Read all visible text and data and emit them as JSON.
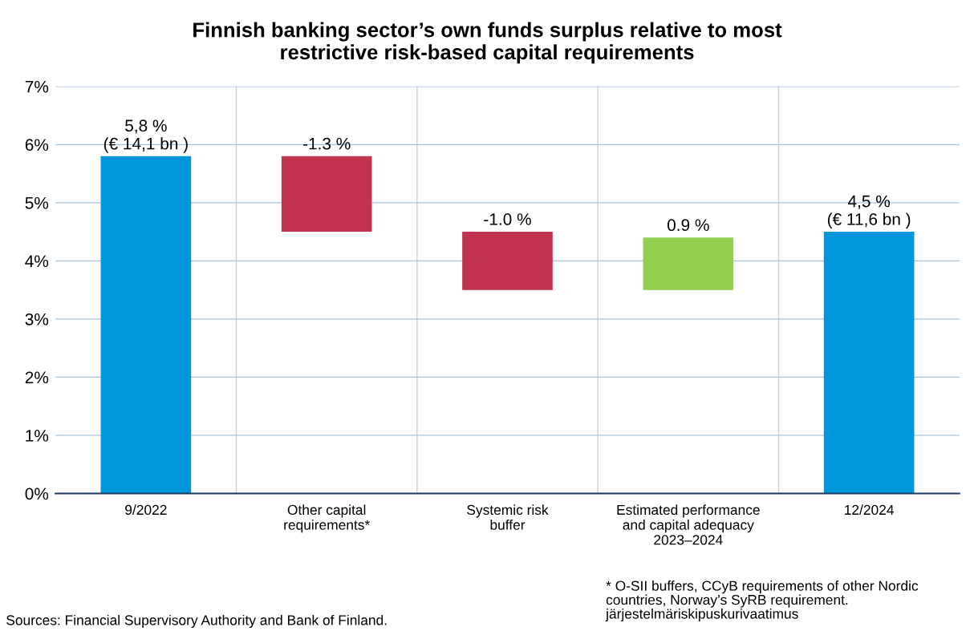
{
  "chart_data": {
    "type": "bar",
    "title": "Finnish banking sector’s own funds surplus relative to most\nrestrictive risk-based capital requirements",
    "categories": [
      "9/2022",
      "Other capital\nrequirements*",
      "Systemic risk\nbuffer",
      "Estimated performance\nand capital adequacy\n2023–2024",
      "12/2024"
    ],
    "values": [
      5.8,
      -1.3,
      -1.0,
      0.9,
      4.5
    ],
    "base": [
      0,
      5.8,
      4.5,
      3.5,
      0
    ],
    "colors": [
      "#0096db",
      "#c23350",
      "#c23350",
      "#92d050",
      "#0096db"
    ],
    "value_labels": [
      "5,8 %\n(€ 14,1 bn )",
      "-1.3 %",
      "-1.0 %",
      "0.9 %",
      "4,5 %\n(€ 11,6 bn )"
    ],
    "ylim": [
      0,
      7
    ],
    "yticks": [
      {
        "value": 0,
        "label": "0%"
      },
      {
        "value": 1,
        "label": "1%"
      },
      {
        "value": 2,
        "label": "2%"
      },
      {
        "value": 3,
        "label": "3%"
      },
      {
        "value": 4,
        "label": "4%"
      },
      {
        "value": 5,
        "label": "5%"
      },
      {
        "value": 6,
        "label": "6%"
      },
      {
        "value": 7,
        "label": "7%"
      }
    ],
    "grid": true,
    "annotations": [
      "* O-SII buffers, CCyB requirements of other Nordic\ncountries, Norway’s SyRB requirement.\njärjestelmäriskipuskurivaatimus",
      "Sources: Financial Supervisory Authority and Bank of Finland."
    ]
  }
}
